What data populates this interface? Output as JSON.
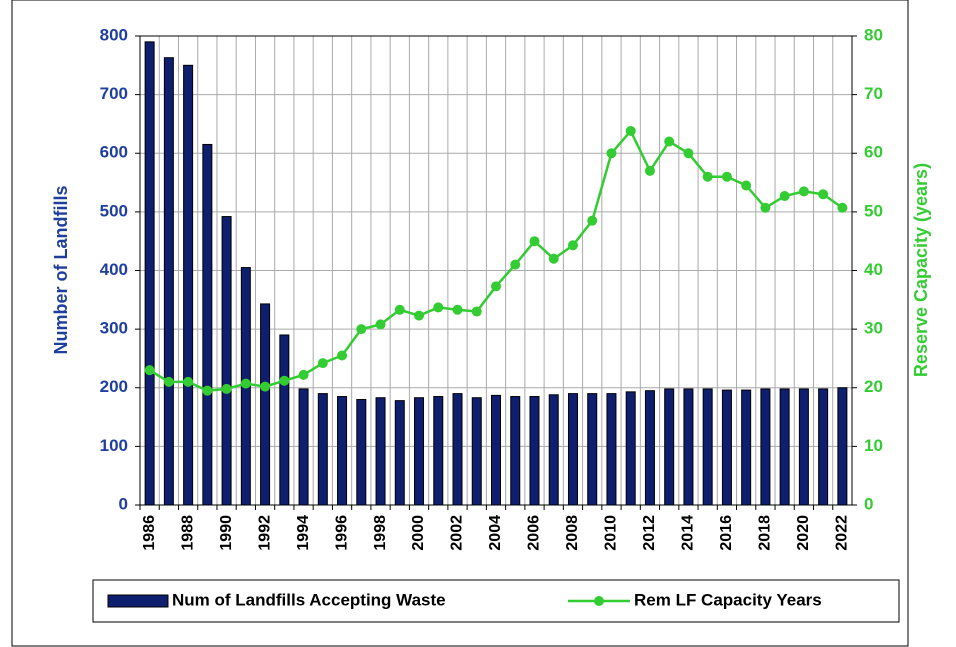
{
  "chart_data": {
    "type": "bar_line",
    "categories": [
      "1986",
      null,
      "1988",
      null,
      "1990",
      null,
      "1992",
      null,
      "1994",
      null,
      "1996",
      null,
      "1998",
      null,
      "2000",
      null,
      "2002",
      null,
      "2004",
      null,
      "2006",
      null,
      "2008",
      null,
      "2010",
      null,
      "2012",
      null,
      "2014",
      null,
      "2016",
      null,
      "2018",
      null,
      "2020",
      null,
      "2022"
    ],
    "y_label": "Number of Landfills",
    "y2_label": "Reserve Capacity (years)",
    "series": [
      {
        "name": "Num of Landfills Accepting Waste",
        "type": "bar",
        "color": "#0d1f6e",
        "values": [
          790,
          763,
          750,
          615,
          492,
          405,
          343,
          290,
          198,
          190,
          185,
          180,
          183,
          178,
          183,
          185,
          190,
          183,
          187,
          185,
          185,
          188,
          190,
          190,
          190,
          193,
          195,
          198,
          198,
          198,
          196,
          196,
          198,
          198,
          198,
          198,
          200
        ]
      },
      {
        "name": "Rem LF Capacity Years",
        "type": "line",
        "axis": "y2",
        "color": "#33cc33",
        "values": [
          23,
          21,
          21,
          19.5,
          19.8,
          20.7,
          20.2,
          21.2,
          22.2,
          24.2,
          25.5,
          30,
          30.8,
          33.3,
          32.3,
          33.7,
          33.3,
          33,
          37.3,
          41,
          45,
          42,
          44.3,
          48.5,
          60,
          63.8,
          57,
          62,
          60,
          56,
          56,
          54.5,
          50.7,
          52.7,
          53.5,
          53,
          50.7
        ]
      }
    ],
    "ylim": [
      0,
      800
    ],
    "yticks": [
      0,
      100,
      200,
      300,
      400,
      500,
      600,
      700,
      800
    ],
    "y2lim": [
      0,
      80
    ],
    "y2ticks": [
      0,
      10,
      20,
      30,
      40,
      50,
      60,
      70,
      80
    ],
    "grid": true,
    "legend": "bottom",
    "y_color": "#1f3f9e",
    "y2_color": "#33cc33"
  }
}
